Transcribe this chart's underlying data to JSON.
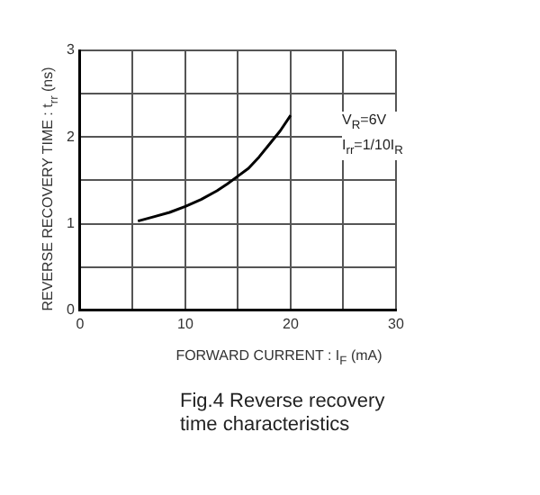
{
  "chart_data": {
    "type": "line",
    "title": "Fig.4  Reverse  recovery time characteristics",
    "xlabel": "FORWARD  CURRENT : I$_{F}$ (mA)",
    "ylabel": "REVERSE  RECOVERY  TIME : t$_{rr}$ (ns)",
    "x": [
      5.5,
      7,
      8.5,
      10,
      11.5,
      13,
      14,
      15,
      16,
      17,
      18,
      19,
      20
    ],
    "series": [
      {
        "color": "#000000",
        "values": [
          1.03,
          1.08,
          1.13,
          1.2,
          1.28,
          1.38,
          1.46,
          1.55,
          1.64,
          1.77,
          1.92,
          2.07,
          2.25
        ]
      }
    ],
    "xlim": [
      0,
      30
    ],
    "xticks": [
      0,
      {
        "value": 5,
        "label": null
      },
      10,
      {
        "value": 15,
        "label": null
      },
      20,
      {
        "value": 25,
        "label": null
      },
      30
    ],
    "ylim": [
      0,
      3
    ],
    "yticks": [
      0,
      {
        "value": 0.5,
        "label": null
      },
      1,
      {
        "value": 1.5,
        "label": null
      },
      2,
      {
        "value": 2.5,
        "label": null
      },
      3
    ],
    "grid": true,
    "marker": "none",
    "line_style": "solid",
    "legend": false,
    "annotations": [
      "V$_{R}$=6V",
      "I$_{rr}$=1/10I$_{R}$"
    ]
  }
}
